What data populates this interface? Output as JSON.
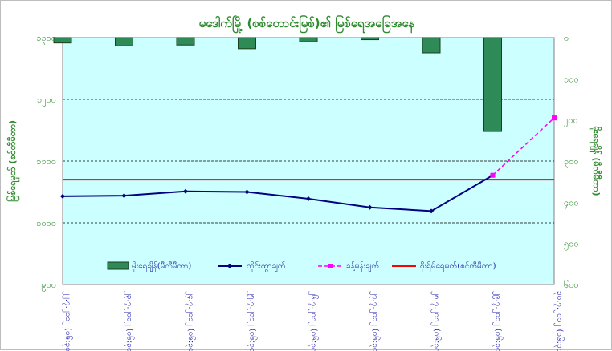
{
  "chart_data": {
    "type": "bar+line",
    "title": "မဒေါက်မြို့ (စစ်တောင်းမြစ်)၏ မြစ်ရေအခြေအနေ",
    "ylabel_left": "မြစ်ရေမှတ် (စင်တီမီတာ)",
    "ylabel_right": "မိုးရေချိန် (မီလီမီတာ)",
    "left_axis": {
      "ylim": [
        900,
        1300
      ],
      "ticks": [
        900,
        1000,
        1100,
        1200,
        1300
      ],
      "tick_labels": [
        "၉၀၀",
        "၁၀၀၀",
        "၁၁၀၀",
        "၁၂၀၀",
        "၁၃၀၀"
      ]
    },
    "right_axis": {
      "ylim": [
        0,
        600
      ],
      "inverted": true,
      "ticks": [
        0,
        100,
        200,
        300,
        400,
        500,
        600
      ],
      "tick_labels": [
        "၀",
        "၁၀၀",
        "၂၀၀",
        "၃၀၀",
        "၄၀၀",
        "၅၀၀",
        "၆၀၀"
      ]
    },
    "categories": [
      "၂၂.၇.၂၀၁၂ (၀၆:၃၀)",
      "၂၃.၇.၂၀၁၂ (၀၆:၃၀)",
      "၂၄.၇.၂၀၁၂ (၀၆:၃၀)",
      "၂၅.၇.၂၀၁၂ (၀၆:၃၀)",
      "၂၆.၇.၂၀၁၂ (၀၆:၃၀)",
      "၂၇.၇.၂၀၁၂ (၀၆:၃၀)",
      "၂၈.၇.၂၀၁၂ (၀၆:၃၀)",
      "၂၉.၇.၂၀၁၂ (၀၆:၃၀)",
      "၃၀.၇.၂၀၁၂ (၀၆:၃၀)"
    ],
    "series": [
      {
        "name": "မိုးရေချိန်(မီလီမီတာ)",
        "type": "bar",
        "axis": "right",
        "color": "#2e8b57",
        "values": [
          13,
          20,
          18,
          27,
          10,
          5,
          37,
          228,
          null
        ]
      },
      {
        "name": "တိုင်းထွာချက်",
        "type": "line",
        "axis": "left",
        "color": "#000080",
        "values": [
          1043,
          1044,
          1051,
          1050,
          1039,
          1025,
          1019,
          1077,
          null
        ]
      },
      {
        "name": "ခန့်မှန်းချက်",
        "type": "dashed-line",
        "axis": "left",
        "color": "#ff00ff",
        "values": [
          null,
          null,
          null,
          null,
          null,
          null,
          null,
          1077,
          1170
        ]
      },
      {
        "name": "စိုးရိမ်ရေမှတ်(စင်တီမီတာ)",
        "type": "hline",
        "axis": "left",
        "color": "#ff0000",
        "value": 1070
      }
    ],
    "grid": {
      "horizontal": true,
      "style": "dashed",
      "color": "#000000",
      "left_values": [
        1000,
        1100,
        1200
      ]
    },
    "plot_background": "#ccffff",
    "legend_position": "bottom-inside"
  }
}
